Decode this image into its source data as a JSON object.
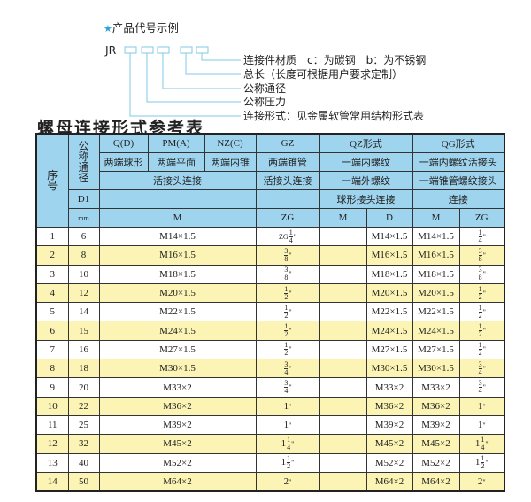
{
  "code_example": {
    "title": "产品代号示例",
    "prefix": "JR",
    "dash": "-",
    "labels": [
      "连接件材质　c：为碳钢　b：为不锈钢",
      "总长（长度可根据用户要求定制）",
      "公称通径",
      "公称压力",
      "连接形式：见金属软管常用结构形式表"
    ],
    "accent_color": "#2aa3d8"
  },
  "table_title": "螺母连接形式参考表",
  "header": {
    "seq": "序号",
    "nominal": "公称通径",
    "qd": "Q(D)",
    "pm": "PM(A)",
    "nz": "NZ(C)",
    "gz": "GZ",
    "qz": "QZ形式",
    "qg": "QG形式",
    "qd2": "两端球形",
    "pm2": "两端平面",
    "nz2": "两端内锥",
    "gz2": "两端锥管",
    "qz2": "一端内螺纹",
    "qg2": "一端内螺纹活接头",
    "union": "活接头连接",
    "gz3": "活接头连接",
    "qz3": "一端外螺纹",
    "qg3": "一端锥管螺纹接头",
    "d1": "D1",
    "qz4": "球形接头连接",
    "qg4": "连接",
    "mm": "mm",
    "m": "M",
    "zg": "ZG",
    "qz_m": "M",
    "qz_d": "D",
    "qg_m": "M",
    "qg_zg": "ZG"
  },
  "rows": [
    {
      "no": "1",
      "dn": "6",
      "m": "M14×1.5",
      "zg": {
        "pre": "ZG",
        "whole": "",
        "num": "1",
        "den": "4"
      },
      "qz_m": "",
      "qz_d": "M14×1.5",
      "qg_m": "M14×1.5",
      "qg_zg": {
        "pre": "",
        "whole": "",
        "num": "1",
        "den": "4"
      }
    },
    {
      "no": "2",
      "dn": "8",
      "m": "M16×1.5",
      "zg": {
        "pre": "",
        "whole": "",
        "num": "3",
        "den": "8"
      },
      "qz_m": "",
      "qz_d": "M16×1.5",
      "qg_m": "M16×1.5",
      "qg_zg": {
        "pre": "",
        "whole": "",
        "num": "3",
        "den": "8"
      }
    },
    {
      "no": "3",
      "dn": "10",
      "m": "M18×1.5",
      "zg": {
        "pre": "",
        "whole": "",
        "num": "3",
        "den": "8"
      },
      "qz_m": "",
      "qz_d": "M18×1.5",
      "qg_m": "M18×1.5",
      "qg_zg": {
        "pre": "",
        "whole": "",
        "num": "3",
        "den": "8"
      }
    },
    {
      "no": "4",
      "dn": "12",
      "m": "M20×1.5",
      "zg": {
        "pre": "",
        "whole": "",
        "num": "1",
        "den": "2"
      },
      "qz_m": "",
      "qz_d": "M20×1.5",
      "qg_m": "M20×1.5",
      "qg_zg": {
        "pre": "",
        "whole": "",
        "num": "1",
        "den": "2"
      }
    },
    {
      "no": "5",
      "dn": "14",
      "m": "M22×1.5",
      "zg": {
        "pre": "",
        "whole": "",
        "num": "1",
        "den": "2"
      },
      "qz_m": "",
      "qz_d": "M22×1.5",
      "qg_m": "M22×1.5",
      "qg_zg": {
        "pre": "",
        "whole": "",
        "num": "1",
        "den": "2"
      }
    },
    {
      "no": "6",
      "dn": "15",
      "m": "M24×1.5",
      "zg": {
        "pre": "",
        "whole": "",
        "num": "1",
        "den": "2"
      },
      "qz_m": "",
      "qz_d": "M24×1.5",
      "qg_m": "M24×1.5",
      "qg_zg": {
        "pre": "",
        "whole": "",
        "num": "1",
        "den": "2"
      }
    },
    {
      "no": "7",
      "dn": "16",
      "m": "M27×1.5",
      "zg": {
        "pre": "",
        "whole": "",
        "num": "1",
        "den": "2"
      },
      "qz_m": "",
      "qz_d": "M27×1.5",
      "qg_m": "M27×1.5",
      "qg_zg": {
        "pre": "",
        "whole": "",
        "num": "1",
        "den": "2"
      }
    },
    {
      "no": "8",
      "dn": "18",
      "m": "M30×1.5",
      "zg": {
        "pre": "",
        "whole": "",
        "num": "3",
        "den": "4"
      },
      "qz_m": "",
      "qz_d": "M30×1.5",
      "qg_m": "M30×1.5",
      "qg_zg": {
        "pre": "",
        "whole": "",
        "num": "3",
        "den": "4"
      }
    },
    {
      "no": "9",
      "dn": "20",
      "m": "M33×2",
      "zg": {
        "pre": "",
        "whole": "",
        "num": "3",
        "den": "4"
      },
      "qz_m": "",
      "qz_d": "M33×2",
      "qg_m": "M33×2",
      "qg_zg": {
        "pre": "",
        "whole": "",
        "num": "3",
        "den": "4"
      }
    },
    {
      "no": "10",
      "dn": "22",
      "m": "M36×2",
      "zg": {
        "pre": "",
        "whole": "1",
        "num": "",
        "den": ""
      },
      "qz_m": "",
      "qz_d": "M36×2",
      "qg_m": "M36×2",
      "qg_zg": {
        "pre": "",
        "whole": "1",
        "num": "",
        "den": ""
      }
    },
    {
      "no": "11",
      "dn": "25",
      "m": "M39×2",
      "zg": {
        "pre": "",
        "whole": "1",
        "num": "",
        "den": ""
      },
      "qz_m": "",
      "qz_d": "M39×2",
      "qg_m": "M39×2",
      "qg_zg": {
        "pre": "",
        "whole": "1",
        "num": "",
        "den": ""
      }
    },
    {
      "no": "12",
      "dn": "32",
      "m": "M45×2",
      "zg": {
        "pre": "",
        "whole": "1",
        "num": "1",
        "den": "4"
      },
      "qz_m": "",
      "qz_d": "M45×2",
      "qg_m": "M45×2",
      "qg_zg": {
        "pre": "",
        "whole": "1",
        "num": "1",
        "den": "4"
      }
    },
    {
      "no": "13",
      "dn": "40",
      "m": "M52×2",
      "zg": {
        "pre": "",
        "whole": "1",
        "num": "1",
        "den": "2"
      },
      "qz_m": "",
      "qz_d": "M52×2",
      "qg_m": "M52×2",
      "qg_zg": {
        "pre": "",
        "whole": "1",
        "num": "1",
        "den": "2"
      }
    },
    {
      "no": "14",
      "dn": "50",
      "m": "M64×2",
      "zg": {
        "pre": "",
        "whole": "2",
        "num": "",
        "den": ""
      },
      "qz_m": "",
      "qz_d": "M64×2",
      "qg_m": "M64×2",
      "qg_zg": {
        "pre": "",
        "whole": "2",
        "num": "",
        "den": ""
      }
    }
  ],
  "inch_mark": "\"",
  "colors": {
    "header_bg": "#9fd4ef",
    "alt_row_bg": "#fbf4b4",
    "connector": "#7fcbe6"
  }
}
